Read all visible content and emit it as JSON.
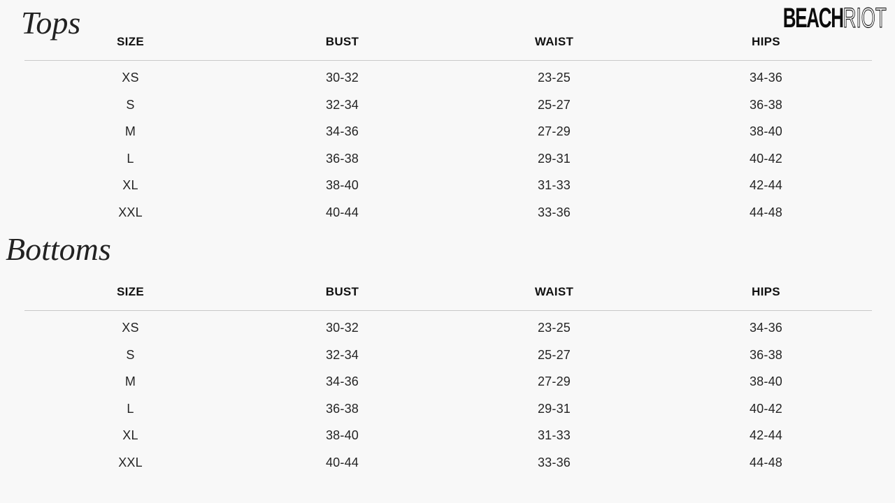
{
  "colors": {
    "background": "#f8f8f8",
    "rule": "#c9c9c9",
    "text": "#1a1a1a"
  },
  "logo": {
    "solid": "BEACH",
    "outline": "RIOT"
  },
  "sections": [
    {
      "title": "Tops",
      "columns": [
        "SIZE",
        "BUST",
        "WAIST",
        "HIPS"
      ],
      "rows": [
        [
          "XS",
          "30-32",
          "23-25",
          "34-36"
        ],
        [
          "S",
          "32-34",
          "25-27",
          "36-38"
        ],
        [
          "M",
          "34-36",
          "27-29",
          "38-40"
        ],
        [
          "L",
          "36-38",
          "29-31",
          "40-42"
        ],
        [
          "XL",
          "38-40",
          "31-33",
          "42-44"
        ],
        [
          "XXL",
          "40-44",
          "33-36",
          "44-48"
        ]
      ]
    },
    {
      "title": "Bottoms",
      "columns": [
        "SIZE",
        "BUST",
        "WAIST",
        "HIPS"
      ],
      "rows": [
        [
          "XS",
          "30-32",
          "23-25",
          "34-36"
        ],
        [
          "S",
          "32-34",
          "25-27",
          "36-38"
        ],
        [
          "M",
          "34-36",
          "27-29",
          "38-40"
        ],
        [
          "L",
          "36-38",
          "29-31",
          "40-42"
        ],
        [
          "XL",
          "38-40",
          "31-33",
          "42-44"
        ],
        [
          "XXL",
          "40-44",
          "33-36",
          "44-48"
        ]
      ]
    }
  ]
}
